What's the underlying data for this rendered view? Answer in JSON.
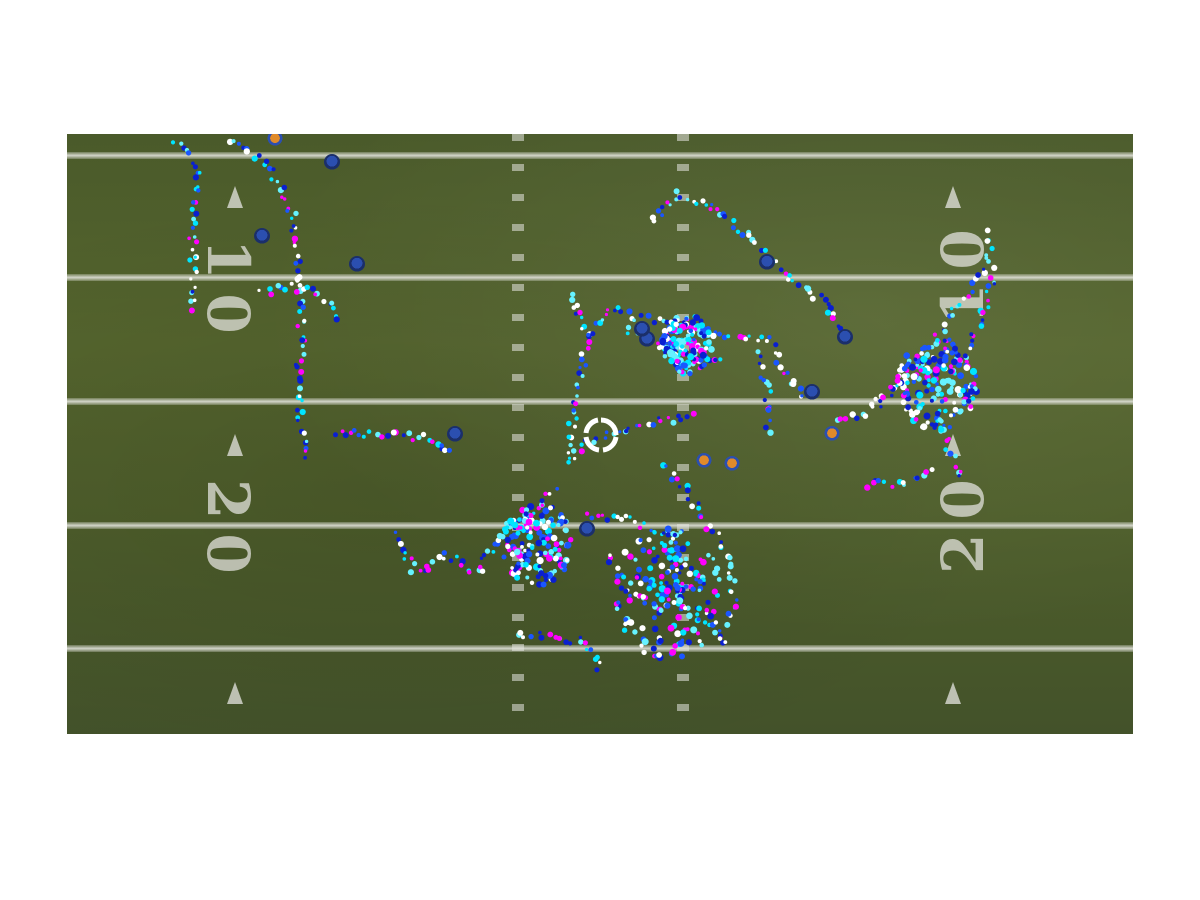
{
  "field": {
    "yard_numbers_left": [
      "10",
      "20"
    ],
    "yard_numbers_right": [
      "10",
      "20"
    ],
    "track_colors": [
      "#ff00ff",
      "#00e5ff",
      "#1a56ff",
      "#0a1fd0",
      "#66f2ff",
      "#ffffff"
    ]
  },
  "players": [
    {
      "team": "blue"
    },
    {
      "team": "orange"
    },
    {
      "team": "blue"
    },
    {
      "team": "blue"
    },
    {
      "team": "blue"
    },
    {
      "team": "blue"
    },
    {
      "team": "blue"
    },
    {
      "team": "orange"
    },
    {
      "team": "blue"
    },
    {
      "team": "blue"
    },
    {
      "team": "orange"
    },
    {
      "team": "orange"
    },
    {
      "team": "blue"
    },
    {
      "team": "blue"
    }
  ],
  "overlay": {
    "icon": "loading-spinner-icon"
  }
}
